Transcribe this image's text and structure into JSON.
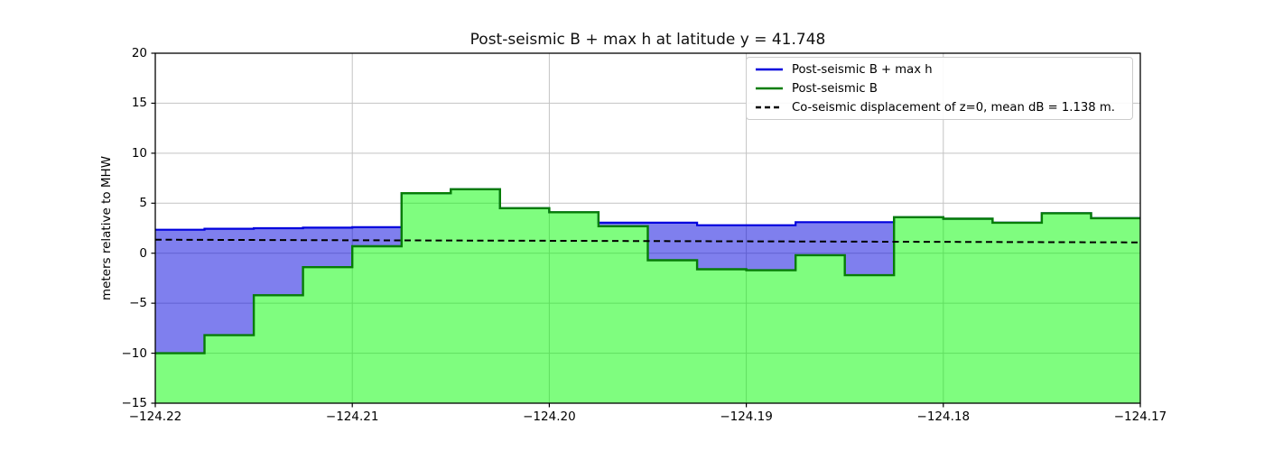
{
  "chart_data": {
    "type": "area",
    "title": "Post-seismic B + max h at latitude y = 41.748",
    "xlabel": "",
    "ylabel": "meters relative to MHW",
    "xlim": [
      -124.22,
      -124.17
    ],
    "ylim": [
      -15,
      20
    ],
    "grid": true,
    "legend_position": "upper right",
    "x_ticks": [
      {
        "value": -124.22,
        "label": "−124.22"
      },
      {
        "value": -124.21,
        "label": "−124.21"
      },
      {
        "value": -124.2,
        "label": "−124.20"
      },
      {
        "value": -124.19,
        "label": "−124.19"
      },
      {
        "value": -124.18,
        "label": "−124.18"
      },
      {
        "value": -124.17,
        "label": "−124.17"
      }
    ],
    "y_ticks": [
      {
        "value": 20,
        "label": "20"
      },
      {
        "value": 15,
        "label": "15"
      },
      {
        "value": 10,
        "label": "10"
      },
      {
        "value": 5,
        "label": "5"
      },
      {
        "value": 0,
        "label": "0"
      },
      {
        "value": -5,
        "label": "−5"
      },
      {
        "value": -10,
        "label": "−10"
      },
      {
        "value": -15,
        "label": "−15"
      }
    ],
    "step_edges": [
      -124.22,
      -124.2175,
      -124.215,
      -124.2125,
      -124.21,
      -124.2075,
      -124.205,
      -124.2025,
      -124.2,
      -124.1975,
      -124.195,
      -124.1925,
      -124.19,
      -124.1875,
      -124.185,
      -124.1825,
      -124.18,
      -124.1775,
      -124.175,
      -124.1725,
      -124.17
    ],
    "series": [
      {
        "name": "Post-seismic B + max h",
        "type": "step-area",
        "fill_mode": "to-other-series",
        "line_color": "#0000dd",
        "fill_color": "#0000dd",
        "fill_opacity": 0.5,
        "legend_line_style": "solid",
        "values": [
          2.35,
          2.45,
          2.5,
          2.55,
          2.6,
          6.0,
          6.4,
          4.5,
          4.1,
          3.05,
          3.05,
          2.8,
          2.8,
          3.1,
          3.1,
          3.6,
          3.45,
          3.05,
          4.0,
          3.5
        ]
      },
      {
        "name": "Post-seismic B",
        "type": "step-area",
        "fill_mode": "to-bottom",
        "line_color": "#067d06",
        "fill_color": "#00fb00",
        "fill_opacity": 0.5,
        "legend_line_style": "solid",
        "values": [
          -10.0,
          -8.2,
          -4.2,
          -1.4,
          0.7,
          6.0,
          6.4,
          4.5,
          4.1,
          2.7,
          -0.7,
          -1.6,
          -1.7,
          -0.2,
          -2.2,
          3.6,
          3.45,
          3.05,
          4.0,
          3.5
        ]
      },
      {
        "name": "Co-seismic displacement of z=0, mean dB = 1.138 m.",
        "type": "dashed-line",
        "line_color": "#000000",
        "legend_line_style": "dashed",
        "x": [
          -124.22,
          -124.17
        ],
        "y": [
          1.35,
          1.08
        ]
      }
    ]
  }
}
